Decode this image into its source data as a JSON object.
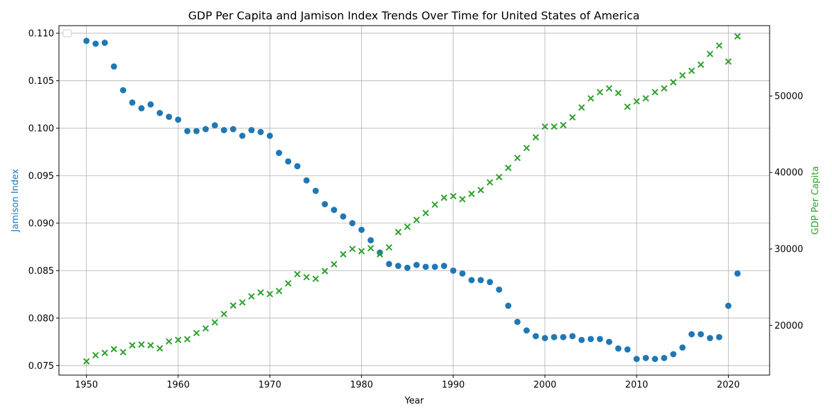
{
  "chart_data": {
    "type": "scatter",
    "title": "GDP Per Capita and Jamison Index Trends Over Time for United States of America",
    "xlabel": "Year",
    "ylabel_left": "Jamison Index",
    "ylabel_right": "GDP Per Capita",
    "xlim": [
      1947,
      2024.5
    ],
    "ylim_left": [
      0.074,
      0.1108
    ],
    "ylim_right": [
      13500,
      59200
    ],
    "x_ticks": [
      1950,
      1960,
      1970,
      1980,
      1990,
      2000,
      2010,
      2020
    ],
    "y_ticks_left": [
      0.075,
      0.08,
      0.085,
      0.09,
      0.095,
      0.1,
      0.105,
      0.11
    ],
    "y_tick_labels_left": [
      "0.075",
      "0.080",
      "0.085",
      "0.090",
      "0.095",
      "0.100",
      "0.105",
      "0.110"
    ],
    "y_ticks_right": [
      20000,
      30000,
      40000,
      50000
    ],
    "grid": true,
    "legend": "upper-left (empty)",
    "colors": {
      "jamison": "#1f77b4",
      "gdp": "#2ca02c",
      "grid": "#b0b0b0"
    },
    "years": [
      1950,
      1951,
      1952,
      1953,
      1954,
      1955,
      1956,
      1957,
      1958,
      1959,
      1960,
      1961,
      1962,
      1963,
      1964,
      1965,
      1966,
      1967,
      1968,
      1969,
      1970,
      1971,
      1972,
      1973,
      1974,
      1975,
      1976,
      1977,
      1978,
      1979,
      1980,
      1981,
      1982,
      1983,
      1984,
      1985,
      1986,
      1987,
      1988,
      1989,
      1990,
      1991,
      1992,
      1993,
      1994,
      1995,
      1996,
      1997,
      1998,
      1999,
      2000,
      2001,
      2002,
      2003,
      2004,
      2005,
      2006,
      2007,
      2008,
      2009,
      2010,
      2011,
      2012,
      2013,
      2014,
      2015,
      2016,
      2017,
      2018,
      2019,
      2020,
      2021
    ],
    "series": [
      {
        "key": "jamison",
        "axis": "left",
        "marker": "circle",
        "values": [
          0.1092,
          0.1089,
          0.109,
          0.1065,
          0.104,
          0.1027,
          0.1021,
          0.1025,
          0.1016,
          0.1012,
          0.1009,
          0.0997,
          0.0997,
          0.0999,
          0.1003,
          0.0998,
          0.0999,
          0.0992,
          0.0998,
          0.0996,
          0.0992,
          0.0974,
          0.0965,
          0.096,
          0.0945,
          0.0934,
          0.092,
          0.0914,
          0.0907,
          0.09,
          0.0893,
          0.0882,
          0.0869,
          0.0857,
          0.0855,
          0.0853,
          0.0856,
          0.0854,
          0.0854,
          0.0855,
          0.085,
          0.0847,
          0.084,
          0.084,
          0.0838,
          0.083,
          0.0813,
          0.0796,
          0.0787,
          0.0781,
          0.0779,
          0.078,
          0.078,
          0.0781,
          0.0777,
          0.0778,
          0.0778,
          0.0775,
          0.0768,
          0.0767,
          0.0757,
          0.0758,
          0.0757,
          0.0758,
          0.0762,
          0.0769,
          0.0783,
          0.0783,
          0.0779,
          0.078,
          0.0813,
          0.0847
        ]
      },
      {
        "key": "gdp",
        "axis": "right",
        "marker": "x",
        "values": [
          15300,
          16100,
          16400,
          16900,
          16500,
          17400,
          17500,
          17400,
          17000,
          17900,
          18100,
          18200,
          19000,
          19600,
          20400,
          21500,
          22600,
          23000,
          23800,
          24300,
          24100,
          24500,
          25500,
          26700,
          26300,
          26100,
          27100,
          28000,
          29300,
          30000,
          29700,
          30100,
          29300,
          30200,
          32200,
          32900,
          33800,
          34700,
          35800,
          36700,
          36900,
          36500,
          37200,
          37700,
          38700,
          39400,
          40600,
          41900,
          43200,
          44600,
          46000,
          46000,
          46200,
          47200,
          48500,
          49700,
          50500,
          51000,
          50400,
          48600,
          49300,
          49700,
          50500,
          51000,
          51800,
          52700,
          53300,
          54100,
          55500,
          56600,
          54500,
          57800
        ]
      }
    ]
  }
}
